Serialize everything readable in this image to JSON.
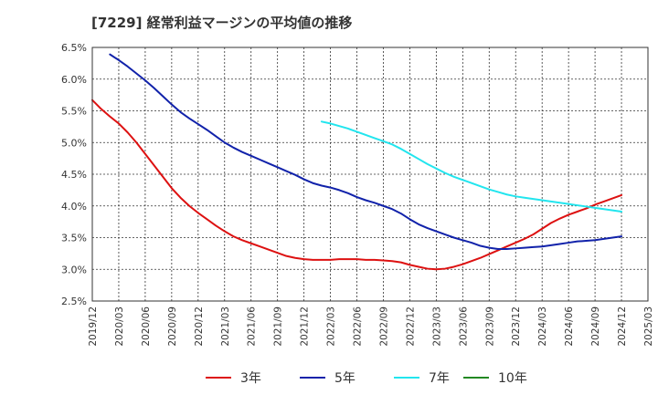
{
  "chart_data": {
    "type": "line",
    "title": "[7229]  経常利益マージンの平均値の推移",
    "xlabel": "",
    "ylabel": "",
    "ylim": [
      2.5,
      6.5
    ],
    "y_ticks": [
      "2.5%",
      "3.0%",
      "3.5%",
      "4.0%",
      "4.5%",
      "5.0%",
      "5.5%",
      "6.0%",
      "6.5%"
    ],
    "y_tick_values": [
      2.5,
      3.0,
      3.5,
      4.0,
      4.5,
      5.0,
      5.5,
      6.0,
      6.5
    ],
    "x_ticks": [
      "2019/12",
      "2020/03",
      "2020/06",
      "2020/09",
      "2020/12",
      "2021/03",
      "2021/06",
      "2021/09",
      "2021/12",
      "2022/03",
      "2022/06",
      "2022/09",
      "2022/12",
      "2023/03",
      "2023/06",
      "2023/09",
      "2023/12",
      "2024/03",
      "2024/06",
      "2024/09",
      "2024/12",
      "2025/03"
    ],
    "grid": true,
    "legend_position": "bottom",
    "series": [
      {
        "name": "3年",
        "color": "#dd1111",
        "points": [
          [
            "2019/12",
            5.67
          ],
          [
            "2020/01",
            5.53
          ],
          [
            "2020/02",
            5.41
          ],
          [
            "2020/03",
            5.3
          ],
          [
            "2020/04",
            5.16
          ],
          [
            "2020/05",
            5.0
          ],
          [
            "2020/06",
            4.82
          ],
          [
            "2020/07",
            4.64
          ],
          [
            "2020/08",
            4.46
          ],
          [
            "2020/09",
            4.28
          ],
          [
            "2020/10",
            4.13
          ],
          [
            "2020/11",
            4.0
          ],
          [
            "2020/12",
            3.89
          ],
          [
            "2021/01",
            3.79
          ],
          [
            "2021/02",
            3.69
          ],
          [
            "2021/03",
            3.6
          ],
          [
            "2021/04",
            3.52
          ],
          [
            "2021/05",
            3.46
          ],
          [
            "2021/06",
            3.41
          ],
          [
            "2021/07",
            3.36
          ],
          [
            "2021/08",
            3.31
          ],
          [
            "2021/09",
            3.26
          ],
          [
            "2021/10",
            3.21
          ],
          [
            "2021/11",
            3.18
          ],
          [
            "2021/12",
            3.16
          ],
          [
            "2022/01",
            3.15
          ],
          [
            "2022/02",
            3.15
          ],
          [
            "2022/03",
            3.15
          ],
          [
            "2022/04",
            3.16
          ],
          [
            "2022/05",
            3.16
          ],
          [
            "2022/06",
            3.16
          ],
          [
            "2022/07",
            3.15
          ],
          [
            "2022/08",
            3.15
          ],
          [
            "2022/09",
            3.14
          ],
          [
            "2022/10",
            3.13
          ],
          [
            "2022/11",
            3.11
          ],
          [
            "2022/12",
            3.07
          ],
          [
            "2023/01",
            3.04
          ],
          [
            "2023/02",
            3.01
          ],
          [
            "2023/03",
            3.0
          ],
          [
            "2023/04",
            3.01
          ],
          [
            "2023/05",
            3.04
          ],
          [
            "2023/06",
            3.08
          ],
          [
            "2023/07",
            3.13
          ],
          [
            "2023/08",
            3.18
          ],
          [
            "2023/09",
            3.24
          ],
          [
            "2023/10",
            3.3
          ],
          [
            "2023/11",
            3.36
          ],
          [
            "2023/12",
            3.42
          ],
          [
            "2024/01",
            3.48
          ],
          [
            "2024/02",
            3.55
          ],
          [
            "2024/03",
            3.64
          ],
          [
            "2024/04",
            3.73
          ],
          [
            "2024/05",
            3.8
          ],
          [
            "2024/06",
            3.86
          ],
          [
            "2024/07",
            3.91
          ],
          [
            "2024/08",
            3.96
          ],
          [
            "2024/09",
            4.02
          ],
          [
            "2024/10",
            4.07
          ],
          [
            "2024/11",
            4.12
          ],
          [
            "2024/12",
            4.17
          ]
        ]
      },
      {
        "name": "5年",
        "color": "#1122aa",
        "points": [
          [
            "2020/02",
            6.39
          ],
          [
            "2020/03",
            6.3
          ],
          [
            "2020/04",
            6.2
          ],
          [
            "2020/05",
            6.09
          ],
          [
            "2020/06",
            5.98
          ],
          [
            "2020/07",
            5.86
          ],
          [
            "2020/08",
            5.73
          ],
          [
            "2020/09",
            5.6
          ],
          [
            "2020/10",
            5.48
          ],
          [
            "2020/11",
            5.38
          ],
          [
            "2020/12",
            5.29
          ],
          [
            "2021/01",
            5.2
          ],
          [
            "2021/02",
            5.1
          ],
          [
            "2021/03",
            5.0
          ],
          [
            "2021/04",
            4.92
          ],
          [
            "2021/05",
            4.85
          ],
          [
            "2021/06",
            4.79
          ],
          [
            "2021/07",
            4.73
          ],
          [
            "2021/08",
            4.67
          ],
          [
            "2021/09",
            4.61
          ],
          [
            "2021/10",
            4.55
          ],
          [
            "2021/11",
            4.49
          ],
          [
            "2021/12",
            4.42
          ],
          [
            "2022/01",
            4.36
          ],
          [
            "2022/02",
            4.32
          ],
          [
            "2022/03",
            4.29
          ],
          [
            "2022/04",
            4.25
          ],
          [
            "2022/05",
            4.2
          ],
          [
            "2022/06",
            4.14
          ],
          [
            "2022/07",
            4.09
          ],
          [
            "2022/08",
            4.05
          ],
          [
            "2022/09",
            4.0
          ],
          [
            "2022/10",
            3.95
          ],
          [
            "2022/11",
            3.88
          ],
          [
            "2022/12",
            3.79
          ],
          [
            "2023/01",
            3.71
          ],
          [
            "2023/02",
            3.65
          ],
          [
            "2023/03",
            3.6
          ],
          [
            "2023/04",
            3.55
          ],
          [
            "2023/05",
            3.5
          ],
          [
            "2023/06",
            3.46
          ],
          [
            "2023/07",
            3.42
          ],
          [
            "2023/08",
            3.37
          ],
          [
            "2023/09",
            3.34
          ],
          [
            "2023/10",
            3.32
          ],
          [
            "2023/11",
            3.32
          ],
          [
            "2023/12",
            3.33
          ],
          [
            "2024/01",
            3.34
          ],
          [
            "2024/02",
            3.35
          ],
          [
            "2024/03",
            3.36
          ],
          [
            "2024/04",
            3.38
          ],
          [
            "2024/05",
            3.4
          ],
          [
            "2024/06",
            3.42
          ],
          [
            "2024/07",
            3.44
          ],
          [
            "2024/08",
            3.45
          ],
          [
            "2024/09",
            3.46
          ],
          [
            "2024/10",
            3.48
          ],
          [
            "2024/11",
            3.5
          ],
          [
            "2024/12",
            3.52
          ]
        ]
      },
      {
        "name": "7年",
        "color": "#22e5ee",
        "points": [
          [
            "2022/02",
            5.33
          ],
          [
            "2022/03",
            5.3
          ],
          [
            "2022/04",
            5.26
          ],
          [
            "2022/05",
            5.22
          ],
          [
            "2022/06",
            5.17
          ],
          [
            "2022/07",
            5.12
          ],
          [
            "2022/08",
            5.07
          ],
          [
            "2022/09",
            5.02
          ],
          [
            "2022/10",
            4.97
          ],
          [
            "2022/11",
            4.9
          ],
          [
            "2022/12",
            4.82
          ],
          [
            "2023/01",
            4.74
          ],
          [
            "2023/02",
            4.66
          ],
          [
            "2023/03",
            4.59
          ],
          [
            "2023/04",
            4.52
          ],
          [
            "2023/05",
            4.46
          ],
          [
            "2023/06",
            4.41
          ],
          [
            "2023/07",
            4.36
          ],
          [
            "2023/08",
            4.31
          ],
          [
            "2023/09",
            4.26
          ],
          [
            "2023/10",
            4.22
          ],
          [
            "2023/11",
            4.18
          ],
          [
            "2023/12",
            4.15
          ],
          [
            "2024/01",
            4.13
          ],
          [
            "2024/02",
            4.11
          ],
          [
            "2024/03",
            4.09
          ],
          [
            "2024/04",
            4.07
          ],
          [
            "2024/05",
            4.05
          ],
          [
            "2024/06",
            4.03
          ],
          [
            "2024/07",
            4.01
          ],
          [
            "2024/08",
            3.99
          ],
          [
            "2024/09",
            3.97
          ],
          [
            "2024/10",
            3.95
          ],
          [
            "2024/11",
            3.93
          ],
          [
            "2024/12",
            3.91
          ]
        ]
      },
      {
        "name": "10年",
        "color": "#228822",
        "points": []
      }
    ]
  }
}
